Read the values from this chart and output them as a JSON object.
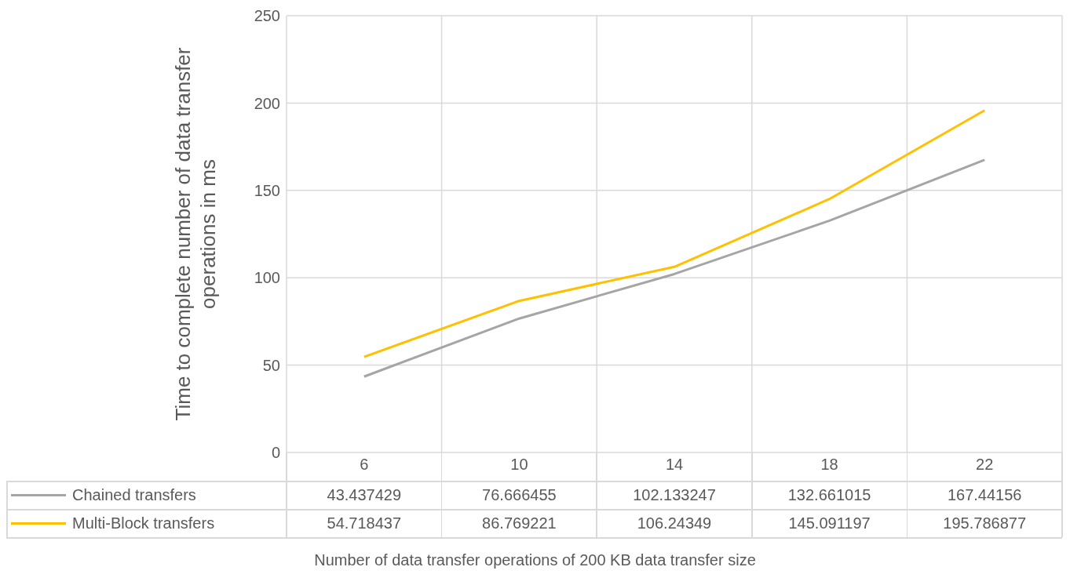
{
  "chart_data": {
    "type": "line",
    "xlabel": "Number of data transfer operations of 200 KB data transfer size",
    "ylabel": "Time to complete number of data transfer operations in ms",
    "categories": [
      "6",
      "10",
      "14",
      "18",
      "22"
    ],
    "series": [
      {
        "name": "Chained transfers",
        "color": "#a5a5a5",
        "values": [
          43.437429,
          76.666455,
          102.133247,
          132.661015,
          167.44156
        ]
      },
      {
        "name": "Multi-Block transfers",
        "color": "#ffc000",
        "values": [
          54.718437,
          86.769221,
          106.24349,
          145.091197,
          195.786877
        ]
      }
    ],
    "ylim": [
      0,
      250
    ],
    "yticks": [
      0,
      50,
      100,
      150,
      200,
      250
    ],
    "grid": true,
    "legend": "bottom",
    "data_labels": true,
    "marker": "none",
    "line_style": "solid"
  }
}
